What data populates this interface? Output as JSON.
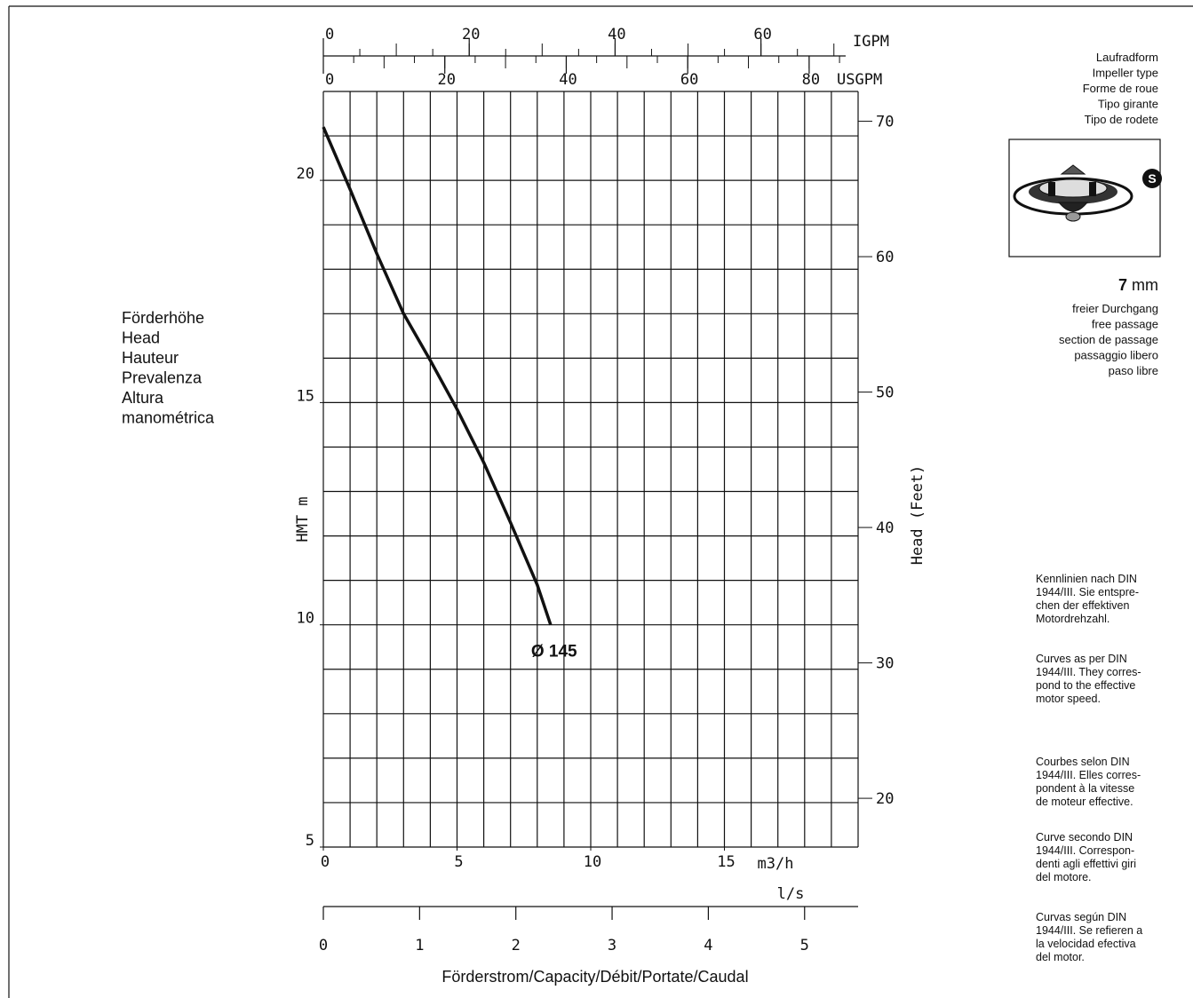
{
  "chart_data": {
    "type": "line",
    "x": [
      0,
      1,
      2,
      3,
      4,
      5,
      6,
      7,
      8,
      8.5
    ],
    "series": [
      {
        "name": "Ø 145",
        "color": "#111111",
        "values": [
          21.2,
          19.8,
          18.35,
          17.0,
          15.95,
          14.85,
          13.65,
          12.3,
          10.9,
          10.0
        ]
      }
    ],
    "xlim": [
      0,
      20
    ],
    "xticks": [
      0,
      5,
      10,
      15
    ],
    "x_unit": "m3/h",
    "ylim": [
      5,
      22
    ],
    "yticks": [
      5,
      10,
      15,
      20
    ],
    "ylabel": "HMT m",
    "y2lim": [
      16.4,
      72.2
    ],
    "y2ticks": [
      20,
      30,
      40,
      50,
      60,
      70
    ],
    "y2label": "Head (Feet)",
    "grid": {
      "x_step": 1,
      "y_step": 1
    },
    "top_axes": [
      {
        "unit": "IGPM",
        "lim": [
          0,
          73.32
        ],
        "ticks": [
          0,
          20,
          40,
          60
        ],
        "minor_step": 5
      },
      {
        "unit": "USGPM",
        "lim": [
          0,
          88.06
        ],
        "ticks": [
          0,
          20,
          40,
          60,
          80
        ],
        "minor_step": 5
      }
    ],
    "bottom_axis": {
      "unit": "l/s",
      "lim": [
        0,
        5.556
      ],
      "ticks": [
        0,
        1,
        2,
        3,
        4,
        5
      ]
    },
    "xlabel": "Förderstrom/Capacity/Débit/Portate/Caudal"
  },
  "head_label": [
    "Förderhöhe",
    "Head",
    "Hauteur",
    "Prevalenza",
    "Altura",
    "manométrica"
  ],
  "impeller": {
    "label": [
      "Laufradform",
      "Impeller type",
      "Forme de roue",
      "Tipo girante",
      "Tipo de rodete"
    ],
    "badge": "S"
  },
  "passage": {
    "value": "7",
    "unit": "mm",
    "label": [
      "freier Durchgang",
      "free passage",
      "section de passage",
      "passaggio libero",
      "paso libre"
    ]
  },
  "notes": [
    [
      "Kennlinien nach DIN",
      "1944/III. Sie entspre-",
      "chen der effektiven",
      "Motordrehzahl."
    ],
    [
      "Curves as per DIN",
      "1944/III. They corres-",
      "pond to the effective",
      "motor speed."
    ],
    [
      "Courbes selon DIN",
      "1944/III. Elles corres-",
      "pondent à la vitesse",
      "de moteur effective."
    ],
    [
      "Curve secondo DIN",
      "1944/III. Correspon-",
      "denti agli effettivi giri",
      "del motore."
    ],
    [
      "Curvas según DIN",
      "1944/III. Se refieren a",
      "la velocidad efectiva",
      "del motor."
    ]
  ]
}
